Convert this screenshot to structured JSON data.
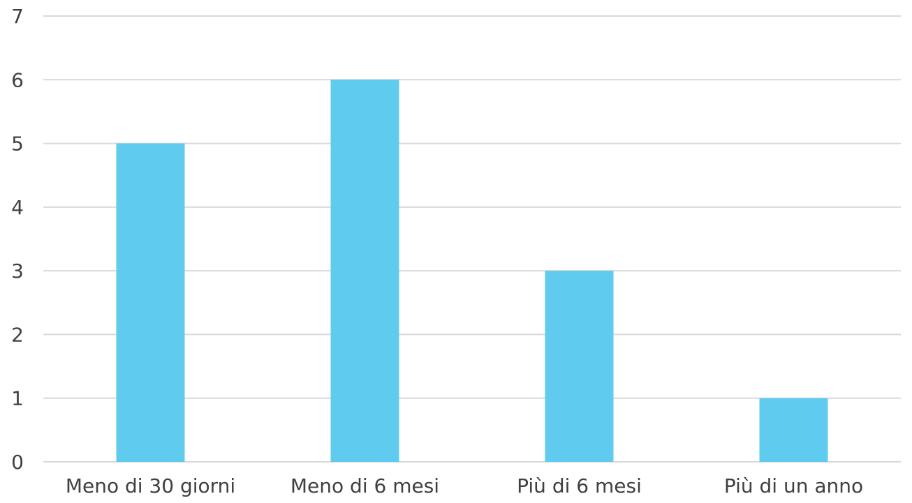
{
  "chart_data": {
    "type": "bar",
    "categories": [
      "Meno di 30 giorni",
      "Meno di 6 mesi",
      "Più di 6 mesi",
      "Più di un anno"
    ],
    "values": [
      5,
      6,
      3,
      1
    ],
    "title": "",
    "xlabel": "",
    "ylabel": "",
    "ylim": [
      0,
      7
    ],
    "yticks": [
      0,
      1,
      2,
      3,
      4,
      5,
      6,
      7
    ],
    "grid": true,
    "legend": "none",
    "bar_color": "#5ECBEF",
    "grid_color": "#D9D9D9",
    "text_color": "#404040"
  }
}
